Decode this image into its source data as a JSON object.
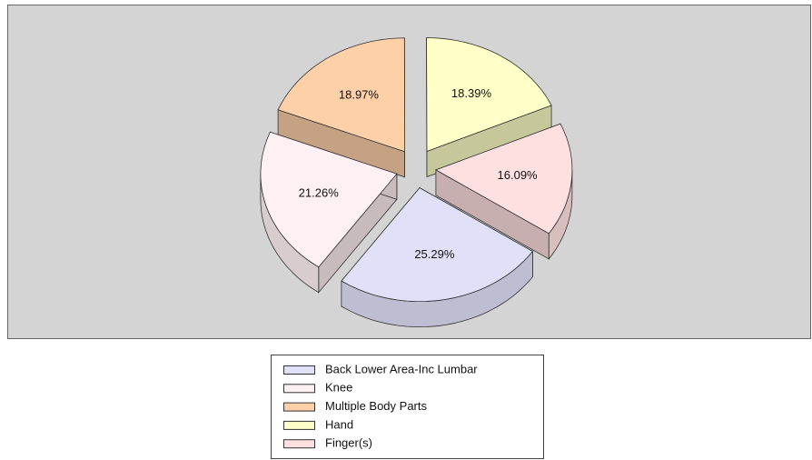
{
  "chart_data": {
    "type": "pie3d",
    "categories": [
      "Back Lower Area-Inc Lumbar",
      "Knee",
      "Multiple Body Parts",
      "Hand",
      "Finger(s)"
    ],
    "values": [
      25.29,
      21.26,
      18.97,
      18.39,
      16.09
    ],
    "value_labels": [
      "25.29%",
      "21.26%",
      "18.97%",
      "18.39%",
      "16.09%"
    ],
    "colors": [
      "#e0e0f8",
      "#fff0f4",
      "#fdd0a8",
      "#ffffc8",
      "#ffe0e0"
    ],
    "start_angle": 124,
    "exploded": true,
    "legend": "bottom"
  }
}
